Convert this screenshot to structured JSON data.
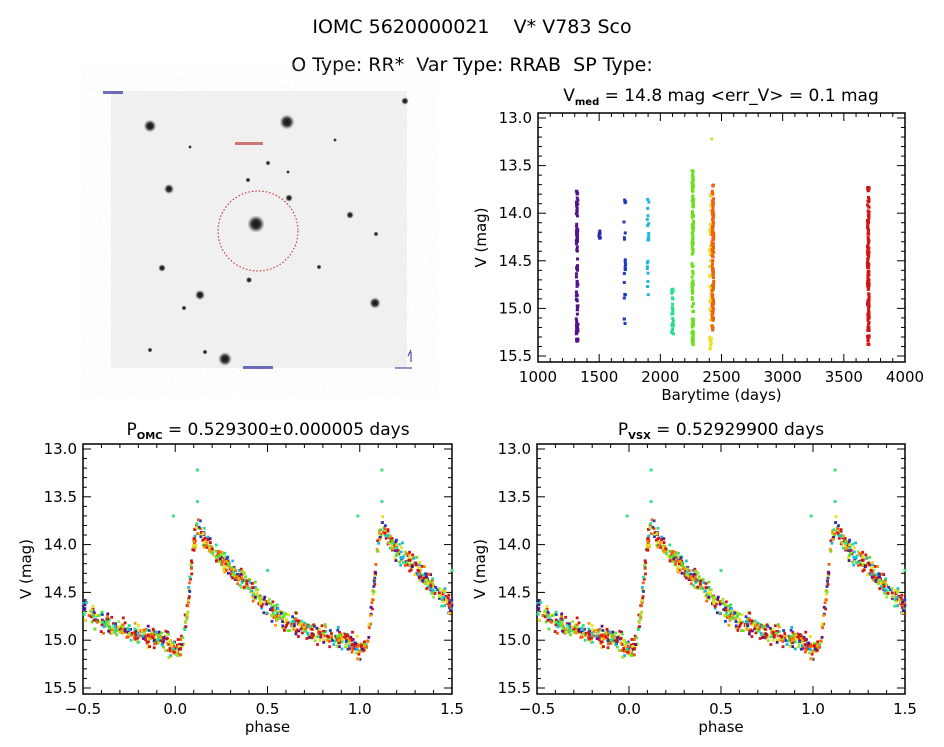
{
  "header": {
    "title": "IOMC 5620000021    V* V783 Sco",
    "subtitle": "O Type: RR*  Var Type: RRAB  SP Type:"
  },
  "image_panel": {
    "type": "sky-image-cutout",
    "marker": "red dotted circle around target star"
  },
  "chart_data": [
    {
      "type": "scatter",
      "title_main": "V",
      "title_sub": "med",
      "title_rest": " = 14.8 mag <err_V> = 0.1 mag",
      "xlabel": "Barytime (days)",
      "ylabel": "V (mag)",
      "xlim": [
        1000,
        4000
      ],
      "ylim": [
        15.5,
        13.0
      ],
      "y_inverted": true,
      "xticks": [
        "1000",
        "1500",
        "2000",
        "2500",
        "3000",
        "3500",
        "4000"
      ],
      "yticks": [
        "13.0",
        "13.5",
        "14.0",
        "14.5",
        "15.0",
        "15.5"
      ],
      "grid": false,
      "groups": [
        {
          "t": 1320,
          "v_range": [
            13.75,
            15.35
          ],
          "color": "#55118a",
          "n": 90
        },
        {
          "t": 1505,
          "v_range": [
            14.12,
            14.28
          ],
          "color": "#2a2aa8",
          "n": 8
        },
        {
          "t": 1710,
          "v_range": [
            13.8,
            15.27
          ],
          "color": "#1e3cc0",
          "n": 22
        },
        {
          "t": 1900,
          "v_range": [
            13.85,
            14.9
          ],
          "color": "#22b4e0",
          "n": 20
        },
        {
          "t": 2100,
          "v_range": [
            14.78,
            15.3
          ],
          "color": "#22e08c",
          "n": 26
        },
        {
          "t": 2265,
          "v_range": [
            13.55,
            15.4
          ],
          "color": "#6ae020",
          "n": 120
        },
        {
          "t": 2410,
          "v_range": [
            13.8,
            15.45
          ],
          "color": "#e8e020",
          "n": 50
        },
        {
          "t": 2430,
          "v_range": [
            13.7,
            15.25
          ],
          "color": "#f06010",
          "n": 110
        },
        {
          "t": 3700,
          "v_range": [
            13.7,
            15.4
          ],
          "color": "#d01515",
          "n": 130
        }
      ],
      "outliers": [
        {
          "t": 2420,
          "v": 13.22,
          "color": "#c8e040"
        }
      ]
    },
    {
      "type": "scatter",
      "title_main": "P",
      "title_sub": "OMC",
      "title_rest": " = 0.529300±0.000005 days",
      "xlabel": "phase",
      "ylabel": "V (mag)",
      "xlim": [
        -0.5,
        1.5
      ],
      "ylim": [
        15.5,
        13.0
      ],
      "y_inverted": true,
      "xticks": [
        "-0.5",
        "0.0",
        "0.5",
        "1.0",
        "1.5"
      ],
      "yticks": [
        "13.0",
        "13.5",
        "14.0",
        "14.5",
        "15.0",
        "15.5"
      ],
      "grid": false,
      "light_curve": {
        "phase": [
          0.0,
          0.04,
          0.07,
          0.1,
          0.12,
          0.15,
          0.2,
          0.3,
          0.4,
          0.5,
          0.6,
          0.7,
          0.8,
          0.9,
          0.97,
          1.0
        ],
        "v": [
          15.12,
          15.05,
          14.6,
          14.0,
          13.8,
          13.9,
          14.05,
          14.25,
          14.45,
          14.65,
          14.8,
          14.88,
          14.93,
          14.98,
          15.05,
          15.12
        ]
      },
      "outliers": [
        {
          "phase": 0.12,
          "v": 13.22
        },
        {
          "phase": 0.12,
          "v": 13.55
        },
        {
          "phase": -0.01,
          "v": 13.7
        },
        {
          "phase": 0.5,
          "v": 14.27
        }
      ]
    },
    {
      "type": "scatter",
      "title_main": "P",
      "title_sub": "VSX",
      "title_rest": " = 0.52929900 days",
      "xlabel": "phase",
      "ylabel": "V (mag)",
      "xlim": [
        -0.5,
        1.5
      ],
      "ylim": [
        15.5,
        13.0
      ],
      "y_inverted": true,
      "xticks": [
        "-0.5",
        "0.0",
        "0.5",
        "1.0",
        "1.5"
      ],
      "yticks": [
        "13.0",
        "13.5",
        "14.0",
        "14.5",
        "15.0",
        "15.5"
      ],
      "grid": false,
      "light_curve": {
        "phase": [
          0.0,
          0.04,
          0.07,
          0.1,
          0.12,
          0.15,
          0.2,
          0.3,
          0.4,
          0.5,
          0.6,
          0.7,
          0.8,
          0.9,
          0.97,
          1.0
        ],
        "v": [
          15.12,
          15.05,
          14.6,
          14.0,
          13.8,
          13.9,
          14.05,
          14.25,
          14.45,
          14.65,
          14.8,
          14.88,
          14.93,
          14.98,
          15.05,
          15.12
        ]
      },
      "outliers": [
        {
          "phase": 0.12,
          "v": 13.22
        },
        {
          "phase": 0.12,
          "v": 13.55
        },
        {
          "phase": -0.01,
          "v": 13.7
        },
        {
          "phase": 0.5,
          "v": 14.27
        }
      ]
    }
  ],
  "colors": {
    "phase_palette": [
      "#d01515",
      "#f06010",
      "#f0a000",
      "#e8e020",
      "#a0e030",
      "#60e020",
      "#22e08c",
      "#22b4e0",
      "#1e3cc0",
      "#55118a"
    ]
  }
}
